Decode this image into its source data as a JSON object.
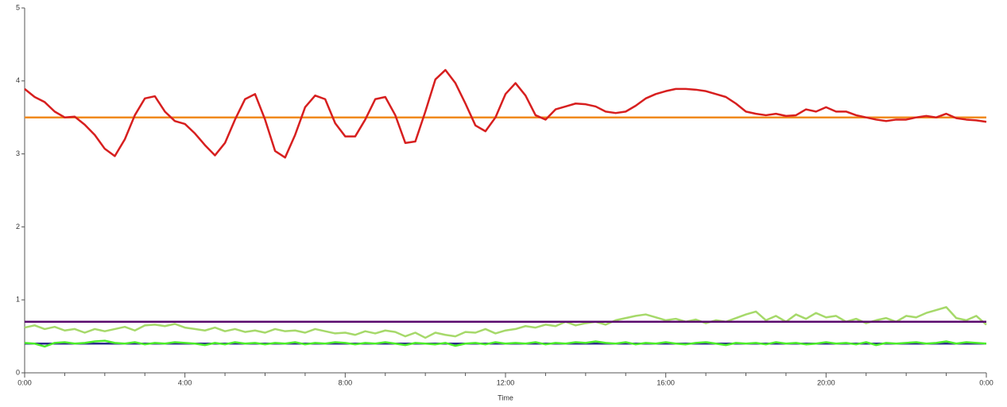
{
  "chart_data": {
    "type": "line",
    "x_label": "Time",
    "x": [
      0,
      0.25,
      0.5,
      0.75,
      1,
      1.25,
      1.5,
      1.75,
      2,
      2.25,
      2.5,
      2.75,
      3,
      3.25,
      3.5,
      3.75,
      4,
      4.25,
      4.5,
      4.75,
      5,
      5.25,
      5.5,
      5.75,
      6,
      6.25,
      6.5,
      6.75,
      7,
      7.25,
      7.5,
      7.75,
      8,
      8.25,
      8.5,
      8.75,
      9,
      9.25,
      9.5,
      9.75,
      10,
      10.25,
      10.5,
      10.75,
      11,
      11.25,
      11.5,
      11.75,
      12,
      12.25,
      12.5,
      12.75,
      13,
      13.25,
      13.5,
      13.75,
      14,
      14.25,
      14.5,
      14.75,
      15,
      15.25,
      15.5,
      15.75,
      16,
      16.25,
      16.5,
      16.75,
      17,
      17.25,
      17.5,
      17.75,
      18,
      18.25,
      18.5,
      18.75,
      19,
      19.25,
      19.5,
      19.75,
      20,
      20.25,
      20.5,
      20.75,
      21,
      21.25,
      21.5,
      21.75,
      22,
      22.25,
      22.5,
      22.75,
      23,
      23.25,
      23.5,
      23.75,
      24
    ],
    "series": [
      {
        "color": "#a6d96a",
        "values": [
          0.62,
          0.65,
          0.6,
          0.63,
          0.58,
          0.6,
          0.55,
          0.6,
          0.57,
          0.6,
          0.63,
          0.58,
          0.65,
          0.66,
          0.64,
          0.67,
          0.62,
          0.6,
          0.58,
          0.62,
          0.57,
          0.6,
          0.56,
          0.58,
          0.55,
          0.6,
          0.57,
          0.58,
          0.55,
          0.6,
          0.57,
          0.54,
          0.55,
          0.52,
          0.57,
          0.54,
          0.58,
          0.56,
          0.5,
          0.55,
          0.48,
          0.55,
          0.52,
          0.5,
          0.56,
          0.55,
          0.6,
          0.54,
          0.58,
          0.6,
          0.64,
          0.62,
          0.66,
          0.64,
          0.7,
          0.65,
          0.68,
          0.7,
          0.66,
          0.72,
          0.75,
          0.78,
          0.8,
          0.76,
          0.72,
          0.74,
          0.7,
          0.73,
          0.68,
          0.72,
          0.7,
          0.75,
          0.8,
          0.84,
          0.72,
          0.78,
          0.7,
          0.8,
          0.74,
          0.82,
          0.76,
          0.78,
          0.7,
          0.74,
          0.68,
          0.72,
          0.75,
          0.7,
          0.78,
          0.76,
          0.82,
          0.86,
          0.9,
          0.75,
          0.72,
          0.78,
          0.66
        ]
      },
      {
        "color": "#2b2b8c",
        "x": [
          0,
          24
        ],
        "values": [
          0.4,
          0.4
        ]
      },
      {
        "color": "#4cec2a",
        "values": [
          0.41,
          0.4,
          0.36,
          0.41,
          0.42,
          0.4,
          0.41,
          0.43,
          0.44,
          0.41,
          0.4,
          0.42,
          0.39,
          0.41,
          0.4,
          0.42,
          0.41,
          0.4,
          0.38,
          0.41,
          0.39,
          0.42,
          0.4,
          0.41,
          0.39,
          0.41,
          0.4,
          0.42,
          0.39,
          0.41,
          0.4,
          0.42,
          0.41,
          0.39,
          0.41,
          0.4,
          0.42,
          0.4,
          0.38,
          0.41,
          0.4,
          0.39,
          0.41,
          0.37,
          0.4,
          0.41,
          0.39,
          0.42,
          0.4,
          0.41,
          0.4,
          0.42,
          0.39,
          0.41,
          0.4,
          0.42,
          0.41,
          0.43,
          0.41,
          0.4,
          0.42,
          0.39,
          0.41,
          0.4,
          0.42,
          0.4,
          0.39,
          0.41,
          0.42,
          0.4,
          0.38,
          0.41,
          0.4,
          0.41,
          0.39,
          0.42,
          0.4,
          0.41,
          0.39,
          0.4,
          0.42,
          0.4,
          0.41,
          0.39,
          0.42,
          0.38,
          0.41,
          0.4,
          0.41,
          0.42,
          0.4,
          0.41,
          0.43,
          0.4,
          0.42,
          0.41,
          0.4
        ]
      },
      {
        "color": "#5a0a6e",
        "x": [
          0,
          24
        ],
        "values": [
          0.7,
          0.7
        ]
      },
      {
        "color": "#f08a1e",
        "x": [
          0,
          24
        ],
        "values": [
          3.5,
          3.5
        ]
      },
      {
        "color": "#d71f1f",
        "values": [
          3.89,
          3.78,
          3.71,
          3.58,
          3.5,
          3.51,
          3.4,
          3.26,
          3.07,
          2.97,
          3.2,
          3.53,
          3.76,
          3.79,
          3.58,
          3.45,
          3.41,
          3.28,
          3.12,
          2.98,
          3.15,
          3.47,
          3.75,
          3.82,
          3.47,
          3.04,
          2.95,
          3.26,
          3.64,
          3.8,
          3.75,
          3.42,
          3.24,
          3.24,
          3.47,
          3.75,
          3.78,
          3.53,
          3.15,
          3.17,
          3.58,
          4.02,
          4.15,
          3.97,
          3.69,
          3.39,
          3.31,
          3.5,
          3.82,
          3.97,
          3.8,
          3.53,
          3.47,
          3.61,
          3.65,
          3.69,
          3.68,
          3.65,
          3.58,
          3.56,
          3.58,
          3.66,
          3.76,
          3.82,
          3.86,
          3.89,
          3.89,
          3.88,
          3.86,
          3.82,
          3.78,
          3.69,
          3.58,
          3.55,
          3.53,
          3.55,
          3.52,
          3.53,
          3.61,
          3.58,
          3.64,
          3.58,
          3.58,
          3.53,
          3.5,
          3.47,
          3.45,
          3.47,
          3.47,
          3.5,
          3.52,
          3.5,
          3.55,
          3.49,
          3.47,
          3.46,
          3.44
        ]
      }
    ],
    "xlim": [
      0,
      24
    ],
    "xticks": [
      {
        "value": 0,
        "label": "0:00"
      },
      {
        "value": 4,
        "label": "4:00"
      },
      {
        "value": 8,
        "label": "8:00"
      },
      {
        "value": 12,
        "label": "12:00"
      },
      {
        "value": 16,
        "label": "16:00"
      },
      {
        "value": 20,
        "label": "20:00"
      },
      {
        "value": 24,
        "label": "0:00"
      }
    ],
    "ylim": [
      0,
      5
    ],
    "yticks": [
      0,
      1,
      2,
      3,
      4,
      5
    ]
  }
}
